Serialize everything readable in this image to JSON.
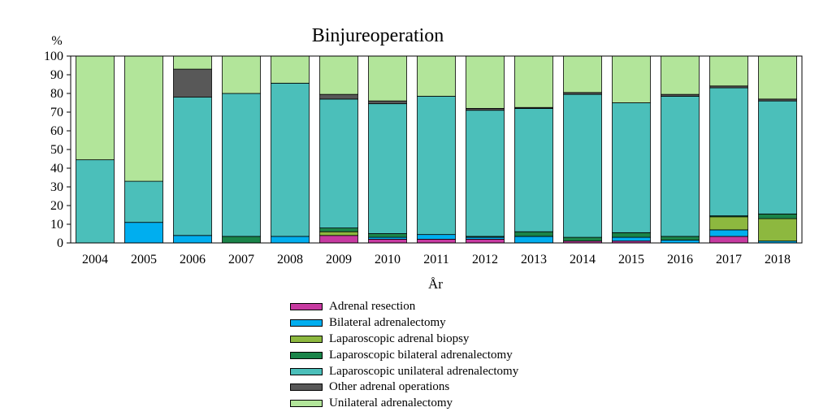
{
  "chart_data": {
    "type": "bar",
    "stacked": true,
    "title": "Binjureoperation",
    "ylabel": "%",
    "xlabel": "År",
    "ylim": [
      0,
      100
    ],
    "yticks": [
      0,
      10,
      20,
      30,
      40,
      50,
      60,
      70,
      80,
      90,
      100
    ],
    "grid": false,
    "legend_position": "bottom",
    "categories": [
      "2004",
      "2005",
      "2006",
      "2007",
      "2008",
      "2009",
      "2010",
      "2011",
      "2012",
      "2013",
      "2014",
      "2015",
      "2016",
      "2017",
      "2018"
    ],
    "series": [
      {
        "name": "Adrenal resection",
        "color": "#C63AA0",
        "values": [
          0,
          0,
          0,
          0,
          0,
          4,
          2,
          2,
          2,
          0,
          1,
          1,
          0,
          3.5,
          0
        ]
      },
      {
        "name": "Bilateral adrenalectomy",
        "color": "#00AEEF",
        "values": [
          0,
          11,
          4,
          0,
          3.5,
          0,
          1,
          2.5,
          1,
          3.5,
          0,
          2,
          1.5,
          3.5,
          1
        ]
      },
      {
        "name": "Laparoscopic adrenal biopsy",
        "color": "#8DB83F",
        "values": [
          0,
          0,
          0,
          0,
          0,
          2,
          0,
          0,
          0,
          0,
          0,
          0,
          0,
          7,
          12
        ]
      },
      {
        "name": "Laparoscopic bilateral adrenalectomy",
        "color": "#1A8449",
        "values": [
          0,
          0,
          0,
          3.5,
          0,
          2,
          2,
          0,
          0.5,
          2.5,
          2,
          2.5,
          2,
          0.5,
          2.5
        ]
      },
      {
        "name": "Laparoscopic unilateral adrenalectomy",
        "color": "#4BBFBA",
        "values": [
          44.5,
          22,
          74,
          76.5,
          82,
          69,
          69.5,
          74,
          67.5,
          66,
          76.5,
          69.5,
          75,
          68.5,
          60.5
        ]
      },
      {
        "name": "Other adrenal operations",
        "color": "#585858",
        "values": [
          0,
          0,
          15,
          0,
          0,
          2.5,
          1.5,
          0,
          1,
          0.5,
          1,
          0,
          1,
          1,
          1
        ]
      },
      {
        "name": "Unilateral adrenalectomy",
        "color": "#B2E59A",
        "values": [
          55.5,
          67,
          7,
          20,
          14.5,
          20.5,
          24,
          21.5,
          28,
          27.5,
          19.5,
          25,
          20.5,
          16,
          23
        ]
      }
    ]
  }
}
